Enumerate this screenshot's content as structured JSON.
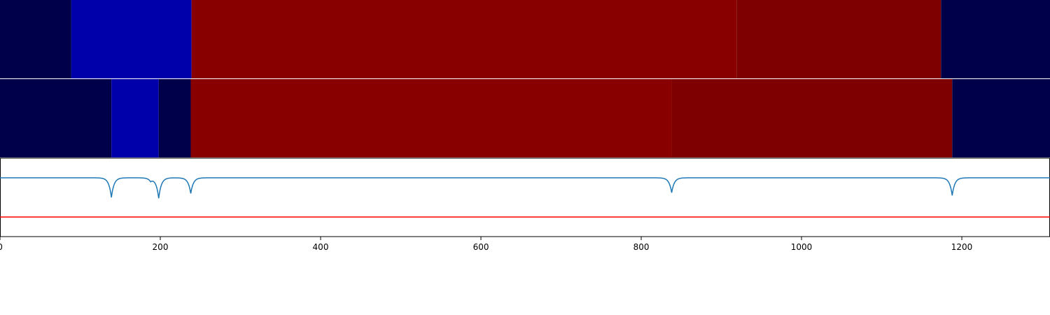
{
  "chart_data": {
    "type": "heatmap",
    "title": "",
    "xlabel": "",
    "ylabel": "",
    "xlim": [
      0,
      1310
    ],
    "x_ticks": [
      0,
      200,
      400,
      600,
      800,
      1000,
      1200
    ],
    "x_tick_labels": [
      "0",
      "200",
      "400",
      "600",
      "800",
      "1000",
      "1200"
    ],
    "grid": false,
    "colormap": "seismic",
    "rows": [
      {
        "segments": [
          {
            "start": 0,
            "end": 89,
            "color": "#00004a"
          },
          {
            "start": 89,
            "end": 239,
            "color": "#0000aa"
          },
          {
            "start": 239,
            "end": 919,
            "color": "#880000"
          },
          {
            "start": 919,
            "end": 1174,
            "color": "#7e0000"
          },
          {
            "start": 1174,
            "end": 1310,
            "color": "#00004a"
          }
        ]
      },
      {
        "segments": [
          {
            "start": 0,
            "end": 139,
            "color": "#00004a"
          },
          {
            "start": 139,
            "end": 198,
            "color": "#0000aa"
          },
          {
            "start": 198,
            "end": 238,
            "color": "#00004a"
          },
          {
            "start": 238,
            "end": 838,
            "color": "#880000"
          },
          {
            "start": 838,
            "end": 1188,
            "color": "#7e0000"
          },
          {
            "start": 1188,
            "end": 1310,
            "color": "#00004a"
          }
        ]
      }
    ],
    "signal": {
      "color": "#1f77b4",
      "baseline": 1.0,
      "ylim": [
        -0.5,
        1.5
      ],
      "dips": [
        {
          "x": 139,
          "min": 0.5
        },
        {
          "x": 188,
          "min": 0.92
        },
        {
          "x": 198,
          "min": 0.48
        },
        {
          "x": 238,
          "min": 0.6
        },
        {
          "x": 838,
          "min": 0.62
        },
        {
          "x": 1188,
          "min": 0.55
        }
      ]
    },
    "threshold": {
      "y": 0.0,
      "color": "#ff0000"
    }
  }
}
